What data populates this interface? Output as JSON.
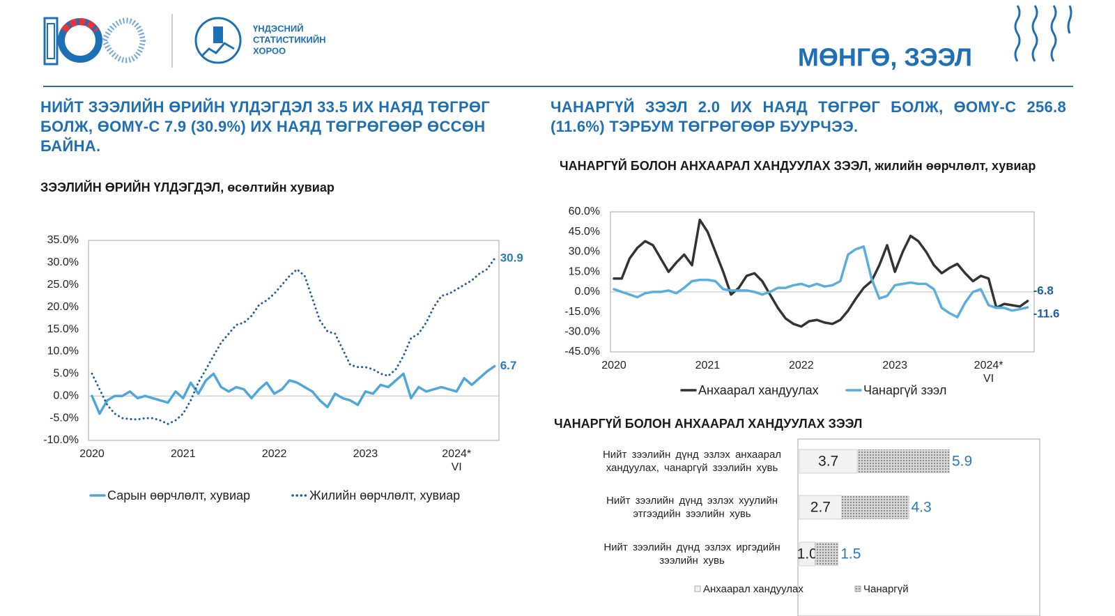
{
  "header": {
    "org_name": [
      "ҮНДЭСНИЙ",
      "СТАТИСТИКИЙН",
      "ХОРОО"
    ],
    "title": "МӨНГӨ, ЗЭЭЛ"
  },
  "headlines": [
    "НИЙТ ЗЭЭЛИЙН ӨРИЙН ҮЛДЭГДЭЛ 33.5 ИХ НАЯД ТӨГРӨГ БОЛЖ, ӨОМҮ-С 7.9 (30.9%) ИХ НАЯД ТӨГРӨГӨӨР ӨССӨН БАЙНА.",
    "ЧАНАРГҮЙ ЗЭЭЛ 2.0 ИХ НАЯД ТӨГРӨГ БОЛЖ, ӨОМҮ-С 256.8 (11.6%) ТЭРБУМ ТӨГРӨГӨӨР БУУРЧЭЭ."
  ],
  "chart_data": [
    {
      "type": "line",
      "title": "ЗЭЭЛИЙН ӨРИЙН ҮЛДЭГДЭЛ, өсөлтийн хувиар",
      "categories": [
        "2020",
        null,
        null,
        null,
        null,
        null,
        null,
        null,
        null,
        null,
        null,
        null,
        "2021",
        null,
        null,
        null,
        null,
        null,
        null,
        null,
        null,
        null,
        null,
        null,
        "2022",
        null,
        null,
        null,
        null,
        null,
        null,
        null,
        null,
        null,
        null,
        null,
        "2023",
        null,
        null,
        null,
        null,
        null,
        null,
        null,
        null,
        null,
        null,
        null,
        "2024*",
        null,
        null,
        null,
        null,
        null
      ],
      "x_note": "VI",
      "ylim": [
        -10,
        35
      ],
      "yticks": [
        {
          "value": -10,
          "label": "-10.0%"
        },
        {
          "value": -5,
          "label": "-5.0%"
        },
        {
          "value": 0,
          "label": "0.0%"
        },
        {
          "value": 5,
          "label": "5.0%"
        },
        {
          "value": 10,
          "label": "10.0%"
        },
        {
          "value": 15,
          "label": "15.0%"
        },
        {
          "value": 20,
          "label": "20.0%"
        },
        {
          "value": 25,
          "label": "25.0%"
        },
        {
          "value": 30,
          "label": "30.0%"
        },
        {
          "value": 35,
          "label": "35.0%"
        }
      ],
      "zero_line": true,
      "series": [
        {
          "name": "Сарын өөрчлөлт, хувиар",
          "color": "#4ea7d8",
          "style": "solid",
          "values": [
            0,
            -4,
            -1,
            0,
            0,
            1,
            -0.5,
            0,
            -0.5,
            -1,
            -1.5,
            1,
            -0.5,
            3,
            0.5,
            3.5,
            5,
            2,
            1,
            2,
            1.5,
            -0.5,
            1.5,
            3,
            0.5,
            1.5,
            3.5,
            3,
            2,
            1,
            -1,
            -2.5,
            0.5,
            -0.5,
            -1,
            -2,
            1,
            0.5,
            2.5,
            2,
            3.5,
            5,
            -0.5,
            2,
            1,
            1.5,
            2,
            1.5,
            1,
            4,
            2.5,
            4,
            5.5,
            6.7
          ]
        },
        {
          "name": "Жилийн өөрчлөлт, хувиар",
          "color": "#1d5e9c",
          "style": "dotted",
          "values": [
            5,
            1.5,
            -2,
            -4,
            -5,
            -5.2,
            -5.3,
            -5,
            -5,
            -5.5,
            -6.3,
            -5.5,
            -4,
            -1,
            3,
            6,
            9,
            12,
            14,
            16,
            16.5,
            18,
            20.5,
            21.5,
            23,
            25,
            27,
            28.5,
            27,
            22,
            17,
            14.5,
            14,
            10.5,
            7,
            6.5,
            6.5,
            6,
            5,
            4.5,
            6,
            9,
            13,
            14,
            16.5,
            20,
            22.5,
            23,
            24,
            25,
            26,
            27.5,
            28.5,
            30.9
          ]
        }
      ]
    },
    {
      "type": "line",
      "title": "ЧАНАРГҮЙ БОЛОН АНХААРАЛ ХАНДУУЛАХ ЗЭЭЛ, жилийн өөрчлөлт, хувиар",
      "categories": [
        "2020",
        null,
        null,
        null,
        null,
        null,
        null,
        null,
        null,
        null,
        null,
        null,
        "2021",
        null,
        null,
        null,
        null,
        null,
        null,
        null,
        null,
        null,
        null,
        null,
        "2022",
        null,
        null,
        null,
        null,
        null,
        null,
        null,
        null,
        null,
        null,
        null,
        "2023",
        null,
        null,
        null,
        null,
        null,
        null,
        null,
        null,
        null,
        null,
        null,
        "2024*",
        null,
        null,
        null,
        null,
        null
      ],
      "x_note": "VI",
      "ylim": [
        -45,
        60
      ],
      "yticks": [
        {
          "value": -45,
          "label": "-45.0%"
        },
        {
          "value": -30,
          "label": "-30.0%"
        },
        {
          "value": -15,
          "label": "-15.0%"
        },
        {
          "value": 0,
          "label": "0.0%"
        },
        {
          "value": 15,
          "label": "15.0%"
        },
        {
          "value": 30,
          "label": "30.0%"
        },
        {
          "value": 45,
          "label": "45.0%"
        },
        {
          "value": 60,
          "label": "60.0%"
        }
      ],
      "zero_line": true,
      "series": [
        {
          "name": "Анхаарал хандуулах",
          "color": "#333333",
          "style": "solid",
          "values": [
            10,
            10,
            25,
            33,
            38,
            35,
            25,
            15,
            22,
            28,
            20,
            54,
            45,
            30,
            15,
            -2,
            3,
            12,
            14,
            8,
            -2,
            -12,
            -20,
            -24,
            -26,
            -22,
            -21,
            -23,
            -24,
            -21,
            -14,
            -5,
            3,
            8,
            20,
            35,
            15,
            30,
            42,
            38,
            30,
            20,
            14,
            18,
            21,
            14,
            8,
            12,
            10,
            -12,
            -9,
            -10,
            -11,
            -6.8
          ]
        },
        {
          "name": "Чанаргүй зээл",
          "color": "#5aaedc",
          "style": "solid",
          "values": [
            2,
            0,
            -2,
            -4,
            -1,
            0,
            0,
            1,
            -1,
            3,
            8,
            9,
            9,
            8,
            2,
            1,
            1,
            1,
            0,
            -2,
            0,
            3,
            3,
            5,
            6,
            4,
            6,
            4,
            5,
            8,
            28,
            32,
            34,
            10,
            -5,
            -3,
            5,
            6,
            7,
            6,
            6,
            2,
            -12,
            -16,
            -19,
            -8,
            0,
            2,
            -10,
            -12,
            -12,
            -14,
            -13,
            -11.6
          ]
        }
      ]
    },
    {
      "type": "bar",
      "orientation": "horizontal",
      "stacked": true,
      "title": "ЧАНАРГҮЙ БОЛОН АНХААРАЛ ХАНДУУЛАХ ЗЭЭЛ",
      "categories": [
        "Нийт зээлийн дүнд эзлэх анхаарал хандуулах, чанаргүй зээлийн хувь",
        "Нийт зээлийн дүнд эзлэх хуулийн этгээдийн зээлийн хувь",
        "Нийт зээлийн дүнд эзлэх иргэдийн зээлийн хувь"
      ],
      "series": [
        {
          "name": "Анхаарал хандуулах",
          "color": "#f2f2f2",
          "values": [
            3.7,
            2.7,
            1.0
          ],
          "value_labels": [
            "3.7",
            "2.7",
            "1.0"
          ]
        },
        {
          "name": "Чанаргүй",
          "color": "#9a9a9a",
          "pattern": "hatch",
          "values": [
            5.9,
            4.3,
            1.5
          ]
        }
      ]
    }
  ]
}
